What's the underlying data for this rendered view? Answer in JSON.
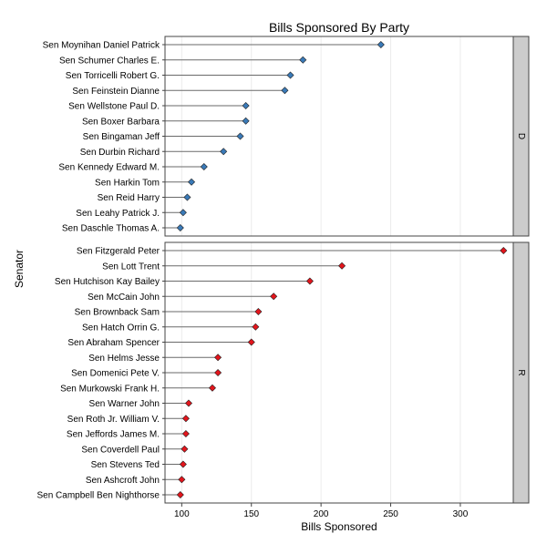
{
  "chart_data": {
    "type": "dot",
    "title": "Bills Sponsored By Party",
    "xlabel": "Bills Sponsored",
    "ylabel": "Senator",
    "xlim": [
      88,
      338
    ],
    "xticks": [
      100,
      150,
      200,
      250,
      300
    ],
    "grid": true,
    "panels": [
      {
        "label": "D",
        "color": "#3a7ab8",
        "senators": [
          {
            "name": "Sen Moynihan  Daniel Patrick",
            "value": 243
          },
          {
            "name": "Sen Schumer  Charles E.",
            "value": 187
          },
          {
            "name": "Sen Torricelli  Robert G.",
            "value": 178
          },
          {
            "name": "Sen Feinstein  Dianne",
            "value": 174
          },
          {
            "name": "Sen Wellstone  Paul D.",
            "value": 146
          },
          {
            "name": "Sen Boxer  Barbara",
            "value": 146
          },
          {
            "name": "Sen Bingaman  Jeff",
            "value": 142
          },
          {
            "name": "Sen Durbin  Richard",
            "value": 130
          },
          {
            "name": "Sen Kennedy  Edward M.",
            "value": 116
          },
          {
            "name": "Sen Harkin  Tom",
            "value": 107
          },
          {
            "name": "Sen Reid  Harry",
            "value": 104
          },
          {
            "name": "Sen Leahy  Patrick J.",
            "value": 101
          },
          {
            "name": "Sen Daschle  Thomas A.",
            "value": 99
          }
        ]
      },
      {
        "label": "R",
        "color": "#e3151c",
        "senators": [
          {
            "name": "Sen Fitzgerald  Peter",
            "value": 331
          },
          {
            "name": "Sen Lott  Trent",
            "value": 215
          },
          {
            "name": "Sen Hutchison  Kay Bailey",
            "value": 192
          },
          {
            "name": "Sen McCain  John",
            "value": 166
          },
          {
            "name": "Sen Brownback  Sam",
            "value": 155
          },
          {
            "name": "Sen Hatch  Orrin G.",
            "value": 153
          },
          {
            "name": "Sen Abraham  Spencer",
            "value": 150
          },
          {
            "name": "Sen Helms  Jesse",
            "value": 126
          },
          {
            "name": "Sen Domenici  Pete V.",
            "value": 126
          },
          {
            "name": "Sen Murkowski  Frank H.",
            "value": 122
          },
          {
            "name": "Sen Warner  John",
            "value": 105
          },
          {
            "name": "Sen Roth Jr.  William V.",
            "value": 103
          },
          {
            "name": "Sen Jeffords  James M.",
            "value": 103
          },
          {
            "name": "Sen Coverdell  Paul",
            "value": 102
          },
          {
            "name": "Sen Stevens  Ted",
            "value": 101
          },
          {
            "name": "Sen Ashcroft  John",
            "value": 100
          },
          {
            "name": "Sen Campbell  Ben Nighthorse",
            "value": 99
          }
        ]
      }
    ]
  }
}
